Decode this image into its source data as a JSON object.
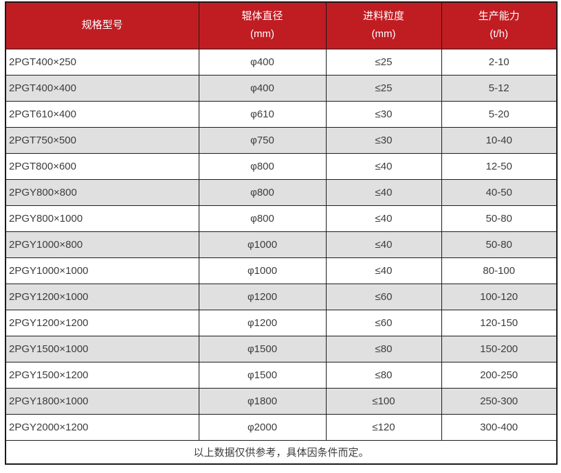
{
  "colors": {
    "header_bg": "#c01d23",
    "header_text": "#ffffff",
    "row_alt_bg": "#e0e0e0",
    "border": "#1a1a1a",
    "text": "#3c3c3c",
    "page_bg": "#ffffff"
  },
  "table": {
    "columns": [
      {
        "label": "规格型号",
        "unit": ""
      },
      {
        "label": "辊体直径",
        "unit": "(mm)"
      },
      {
        "label": "进料粒度",
        "unit": "(mm)"
      },
      {
        "label": "生产能力",
        "unit": "(t/h)"
      }
    ],
    "rows": [
      [
        "2PGT400×250",
        "φ400",
        "≤25",
        "2-10"
      ],
      [
        "2PGT400×400",
        "φ400",
        "≤25",
        "5-12"
      ],
      [
        "2PGT610×400",
        "φ610",
        "≤30",
        "5-20"
      ],
      [
        "2PGT750×500",
        "φ750",
        "≤30",
        "10-40"
      ],
      [
        "2PGT800×600",
        "φ800",
        "≤40",
        "12-50"
      ],
      [
        "2PGY800×800",
        "φ800",
        "≤40",
        "40-50"
      ],
      [
        "2PGY800×1000",
        "φ800",
        "≤40",
        "50-80"
      ],
      [
        "2PGY1000×800",
        "φ1000",
        "≤40",
        "50-80"
      ],
      [
        "2PGY1000×1000",
        "φ1000",
        "≤40",
        "80-100"
      ],
      [
        "2PGY1200×1000",
        "φ1200",
        "≤60",
        "100-120"
      ],
      [
        "2PGY1200×1200",
        "φ1200",
        "≤60",
        "120-150"
      ],
      [
        "2PGY1500×1000",
        "φ1500",
        "≤80",
        "150-200"
      ],
      [
        "2PGY1500×1200",
        "φ1500",
        "≤80",
        "200-250"
      ],
      [
        "2PGY1800×1000",
        "φ1800",
        "≤100",
        "250-300"
      ],
      [
        "2PGY2000×1200",
        "φ2000",
        "≤120",
        "300-400"
      ]
    ],
    "footer_note": "以上数据仅供参考，具体因条件而定。"
  },
  "chart_data": {
    "type": "table",
    "title": "",
    "columns": [
      "规格型号",
      "辊体直径 (mm)",
      "进料粒度 (mm)",
      "生产能力 (t/h)"
    ],
    "rows": [
      [
        "2PGT400×250",
        "φ400",
        "≤25",
        "2-10"
      ],
      [
        "2PGT400×400",
        "φ400",
        "≤25",
        "5-12"
      ],
      [
        "2PGT610×400",
        "φ610",
        "≤30",
        "5-20"
      ],
      [
        "2PGT750×500",
        "φ750",
        "≤30",
        "10-40"
      ],
      [
        "2PGT800×600",
        "φ800",
        "≤40",
        "12-50"
      ],
      [
        "2PGY800×800",
        "φ800",
        "≤40",
        "40-50"
      ],
      [
        "2PGY800×1000",
        "φ800",
        "≤40",
        "50-80"
      ],
      [
        "2PGY1000×800",
        "φ1000",
        "≤40",
        "50-80"
      ],
      [
        "2PGY1000×1000",
        "φ1000",
        "≤40",
        "80-100"
      ],
      [
        "2PGY1200×1000",
        "φ1200",
        "≤60",
        "100-120"
      ],
      [
        "2PGY1200×1200",
        "φ1200",
        "≤60",
        "120-150"
      ],
      [
        "2PGY1500×1000",
        "φ1500",
        "≤80",
        "150-200"
      ],
      [
        "2PGY1500×1200",
        "φ1500",
        "≤80",
        "200-250"
      ],
      [
        "2PGY1800×1000",
        "φ1800",
        "≤100",
        "250-300"
      ],
      [
        "2PGY2000×1200",
        "φ2000",
        "≤120",
        "300-400"
      ]
    ],
    "footnote": "以上数据仅供参考，具体因条件而定。",
    "layout_hints": {
      "header_style": "red background, white text, units on second line",
      "row_striping": "even rows light gray",
      "grid": "on"
    }
  }
}
